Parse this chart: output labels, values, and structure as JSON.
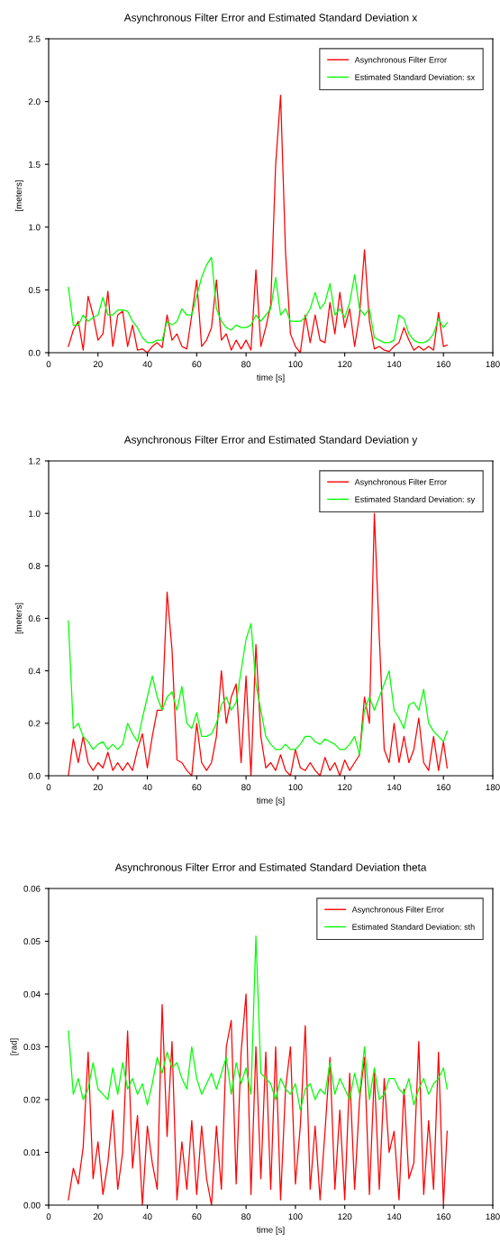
{
  "chart_data": [
    {
      "type": "line",
      "title": "Asynchronous Filter Error and Estimated Standard Deviation x",
      "xlabel": "time [s]",
      "ylabel": "[meters]",
      "legend": "top right",
      "grid": false,
      "line_style": "solid",
      "marker": "none",
      "x": [
        8,
        10,
        12,
        14,
        16,
        18,
        20,
        22,
        24,
        26,
        28,
        30,
        32,
        34,
        36,
        38,
        40,
        42,
        44,
        46,
        48,
        50,
        52,
        54,
        56,
        58,
        60,
        62,
        64,
        66,
        68,
        70,
        72,
        74,
        76,
        78,
        80,
        82,
        84,
        86,
        88,
        90,
        92,
        94,
        96,
        98,
        100,
        102,
        104,
        106,
        108,
        110,
        112,
        114,
        116,
        118,
        120,
        122,
        124,
        126,
        128,
        130,
        132,
        134,
        136,
        138,
        140,
        142,
        144,
        146,
        148,
        150,
        152,
        154,
        156,
        158,
        160,
        161.5
      ],
      "xlim": [
        0,
        180
      ],
      "xticks": [
        0,
        20,
        40,
        60,
        80,
        100,
        120,
        140,
        160,
        180
      ],
      "ylim": [
        0,
        2.5
      ],
      "yticks": [
        {
          "value": 0,
          "label": "0.0"
        },
        {
          "value": 0.5,
          "label": "0.5"
        },
        {
          "value": 1,
          "label": "1.0"
        },
        {
          "value": 1.5,
          "label": "1.5"
        },
        {
          "value": 2,
          "label": "2.0"
        },
        {
          "value": 2.5,
          "label": "2.5"
        }
      ],
      "series": [
        {
          "name": "Asynchronous Filter Error",
          "color": "#ff0000",
          "values": [
            0.05,
            0.18,
            0.25,
            0.02,
            0.45,
            0.3,
            0.1,
            0.15,
            0.49,
            0.05,
            0.3,
            0.33,
            0.05,
            0.22,
            0.02,
            0.03,
            0.0,
            0.05,
            0.08,
            0.04,
            0.3,
            0.1,
            0.15,
            0.05,
            0.03,
            0.3,
            0.58,
            0.05,
            0.1,
            0.2,
            0.58,
            0.1,
            0.15,
            0.02,
            0.1,
            0.03,
            0.1,
            0.02,
            0.66,
            0.05,
            0.2,
            0.38,
            1.5,
            2.05,
            0.8,
            0.15,
            0.05,
            0.0,
            0.3,
            0.08,
            0.3,
            0.1,
            0.08,
            0.4,
            0.15,
            0.48,
            0.2,
            0.35,
            0.05,
            0.3,
            0.82,
            0.25,
            0.03,
            0.05,
            0.02,
            0.01,
            0.05,
            0.08,
            0.2,
            0.1,
            0.02,
            0.05,
            0.02,
            0.05,
            0.02,
            0.32,
            0.05,
            0.06
          ]
        },
        {
          "name": "Estimated Standard Deviation: sx",
          "color": "#00ff00",
          "values": [
            0.52,
            0.22,
            0.22,
            0.3,
            0.25,
            0.28,
            0.3,
            0.44,
            0.3,
            0.3,
            0.34,
            0.34,
            0.33,
            0.25,
            0.2,
            0.12,
            0.08,
            0.08,
            0.1,
            0.1,
            0.25,
            0.22,
            0.25,
            0.35,
            0.3,
            0.3,
            0.45,
            0.6,
            0.7,
            0.76,
            0.35,
            0.25,
            0.2,
            0.18,
            0.22,
            0.2,
            0.2,
            0.22,
            0.3,
            0.25,
            0.3,
            0.35,
            0.6,
            0.3,
            0.35,
            0.25,
            0.25,
            0.25,
            0.28,
            0.35,
            0.48,
            0.35,
            0.4,
            0.55,
            0.3,
            0.35,
            0.28,
            0.4,
            0.62,
            0.35,
            0.3,
            0.35,
            0.12,
            0.1,
            0.08,
            0.08,
            0.1,
            0.3,
            0.27,
            0.15,
            0.1,
            0.08,
            0.08,
            0.1,
            0.15,
            0.27,
            0.2,
            0.24
          ]
        }
      ]
    },
    {
      "type": "line",
      "title": "Asynchronous Filter Error and Estimated Standard Deviation y",
      "xlabel": "time [s]",
      "ylabel": "[meters]",
      "legend": "top right",
      "grid": false,
      "line_style": "solid",
      "marker": "none",
      "x": [
        8,
        10,
        12,
        14,
        16,
        18,
        20,
        22,
        24,
        26,
        28,
        30,
        32,
        34,
        36,
        38,
        40,
        42,
        44,
        46,
        48,
        50,
        52,
        54,
        56,
        58,
        60,
        62,
        64,
        66,
        68,
        70,
        72,
        74,
        76,
        78,
        80,
        82,
        84,
        86,
        88,
        90,
        92,
        94,
        96,
        98,
        100,
        102,
        104,
        106,
        108,
        110,
        112,
        114,
        116,
        118,
        120,
        122,
        124,
        126,
        128,
        130,
        132,
        134,
        136,
        138,
        140,
        142,
        144,
        146,
        148,
        150,
        152,
        154,
        156,
        158,
        160,
        161.5
      ],
      "xlim": [
        0,
        180
      ],
      "xticks": [
        0,
        20,
        40,
        60,
        80,
        100,
        120,
        140,
        160,
        180
      ],
      "ylim": [
        0,
        1.2
      ],
      "yticks": [
        {
          "value": 0,
          "label": "0.0"
        },
        {
          "value": 0.2,
          "label": "0.2"
        },
        {
          "value": 0.4,
          "label": "0.4"
        },
        {
          "value": 0.6,
          "label": "0.6"
        },
        {
          "value": 0.8,
          "label": "0.8"
        },
        {
          "value": 1,
          "label": "1.0"
        },
        {
          "value": 1.2,
          "label": "1.2"
        }
      ],
      "series": [
        {
          "name": "Asynchronous Filter Error",
          "color": "#ff0000",
          "values": [
            0.0,
            0.14,
            0.05,
            0.15,
            0.05,
            0.02,
            0.05,
            0.03,
            0.09,
            0.02,
            0.05,
            0.02,
            0.05,
            0.02,
            0.1,
            0.16,
            0.03,
            0.15,
            0.25,
            0.25,
            0.7,
            0.48,
            0.06,
            0.05,
            0.02,
            0.0,
            0.2,
            0.05,
            0.02,
            0.05,
            0.15,
            0.4,
            0.2,
            0.3,
            0.35,
            0.05,
            0.38,
            0.0,
            0.5,
            0.15,
            0.03,
            0.05,
            0.02,
            0.08,
            0.02,
            0.0,
            0.1,
            0.03,
            0.02,
            0.05,
            0.02,
            0.0,
            0.07,
            0.02,
            0.05,
            0.0,
            0.06,
            0.02,
            0.05,
            0.08,
            0.3,
            0.2,
            1.0,
            0.53,
            0.1,
            0.05,
            0.2,
            0.05,
            0.15,
            0.05,
            0.1,
            0.22,
            0.05,
            0.02,
            0.15,
            0.02,
            0.13,
            0.03
          ]
        },
        {
          "name": "Estimated Standard Deviation: sy",
          "color": "#00ff00",
          "values": [
            0.59,
            0.18,
            0.2,
            0.15,
            0.13,
            0.1,
            0.12,
            0.13,
            0.1,
            0.12,
            0.1,
            0.12,
            0.2,
            0.16,
            0.13,
            0.22,
            0.3,
            0.38,
            0.3,
            0.25,
            0.3,
            0.32,
            0.25,
            0.34,
            0.2,
            0.18,
            0.24,
            0.15,
            0.15,
            0.16,
            0.2,
            0.27,
            0.3,
            0.25,
            0.28,
            0.4,
            0.52,
            0.58,
            0.35,
            0.25,
            0.15,
            0.12,
            0.1,
            0.1,
            0.12,
            0.1,
            0.1,
            0.12,
            0.15,
            0.15,
            0.13,
            0.12,
            0.14,
            0.13,
            0.12,
            0.1,
            0.1,
            0.12,
            0.15,
            0.08,
            0.25,
            0.3,
            0.25,
            0.3,
            0.35,
            0.4,
            0.25,
            0.22,
            0.18,
            0.27,
            0.28,
            0.25,
            0.33,
            0.2,
            0.17,
            0.15,
            0.13,
            0.17
          ]
        }
      ]
    },
    {
      "type": "line",
      "title": "Asynchronous Filter Error and Estimated Standard Deviation theta",
      "xlabel": "time [s]",
      "ylabel": "[rad]",
      "legend": "top right",
      "grid": false,
      "line_style": "solid",
      "marker": "none",
      "x": [
        8,
        10,
        12,
        14,
        16,
        18,
        20,
        22,
        24,
        26,
        28,
        30,
        32,
        34,
        36,
        38,
        40,
        42,
        44,
        46,
        48,
        50,
        52,
        54,
        56,
        58,
        60,
        62,
        64,
        66,
        68,
        70,
        72,
        74,
        76,
        78,
        80,
        82,
        84,
        86,
        88,
        90,
        92,
        94,
        96,
        98,
        100,
        102,
        104,
        106,
        108,
        110,
        112,
        114,
        116,
        118,
        120,
        122,
        124,
        126,
        128,
        130,
        132,
        134,
        136,
        138,
        140,
        142,
        144,
        146,
        148,
        150,
        152,
        154,
        156,
        158,
        160,
        161.5
      ],
      "xlim": [
        0,
        180
      ],
      "xticks": [
        0,
        20,
        40,
        60,
        80,
        100,
        120,
        140,
        160,
        180
      ],
      "ylim": [
        0,
        0.06
      ],
      "yticks": [
        {
          "value": 0,
          "label": "0.00"
        },
        {
          "value": 0.01,
          "label": "0.01"
        },
        {
          "value": 0.02,
          "label": "0.02"
        },
        {
          "value": 0.03,
          "label": "0.03"
        },
        {
          "value": 0.04,
          "label": "0.04"
        },
        {
          "value": 0.05,
          "label": "0.05"
        },
        {
          "value": 0.06,
          "label": "0.06"
        }
      ],
      "series": [
        {
          "name": "Asynchronous Filter Error",
          "color": "#ff0000",
          "values": [
            0.001,
            0.007,
            0.004,
            0.011,
            0.029,
            0.005,
            0.012,
            0.002,
            0.008,
            0.018,
            0.003,
            0.01,
            0.033,
            0.007,
            0.017,
            0.0,
            0.015,
            0.008,
            0.003,
            0.038,
            0.013,
            0.031,
            0.001,
            0.012,
            0.003,
            0.016,
            0.002,
            0.015,
            0.005,
            0.0,
            0.015,
            0.003,
            0.03,
            0.035,
            0.004,
            0.029,
            0.04,
            0.002,
            0.03,
            0.005,
            0.029,
            0.003,
            0.03,
            0.001,
            0.022,
            0.03,
            0.004,
            0.015,
            0.034,
            0.003,
            0.015,
            0.001,
            0.014,
            0.028,
            0.003,
            0.018,
            0.001,
            0.025,
            0.003,
            0.02,
            0.028,
            0.002,
            0.025,
            0.003,
            0.024,
            0.01,
            0.014,
            0.001,
            0.022,
            0.005,
            0.008,
            0.031,
            0.002,
            0.016,
            0.003,
            0.029,
            0.0,
            0.014
          ]
        },
        {
          "name": "Estimated Standard Deviation: sth",
          "color": "#00ff00",
          "values": [
            0.033,
            0.021,
            0.024,
            0.02,
            0.022,
            0.027,
            0.022,
            0.021,
            0.02,
            0.026,
            0.021,
            0.027,
            0.022,
            0.024,
            0.021,
            0.023,
            0.019,
            0.023,
            0.028,
            0.025,
            0.029,
            0.026,
            0.027,
            0.024,
            0.022,
            0.03,
            0.024,
            0.021,
            0.023,
            0.025,
            0.022,
            0.025,
            0.028,
            0.021,
            0.027,
            0.023,
            0.026,
            0.021,
            0.051,
            0.025,
            0.024,
            0.023,
            0.02,
            0.024,
            0.022,
            0.021,
            0.023,
            0.018,
            0.022,
            0.023,
            0.02,
            0.022,
            0.021,
            0.027,
            0.021,
            0.024,
            0.022,
            0.02,
            0.025,
            0.021,
            0.03,
            0.02,
            0.026,
            0.02,
            0.021,
            0.024,
            0.024,
            0.022,
            0.021,
            0.024,
            0.019,
            0.022,
            0.024,
            0.021,
            0.023,
            0.024,
            0.026,
            0.022
          ]
        }
      ]
    }
  ]
}
